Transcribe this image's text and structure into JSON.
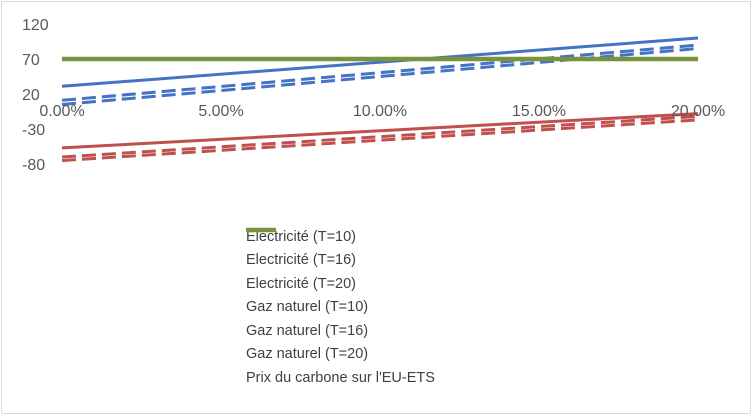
{
  "chart_data": {
    "type": "line",
    "x": [
      0,
      20
    ],
    "xlim": [
      0,
      20
    ],
    "ylim": [
      -80,
      120
    ],
    "y_ticks": [
      "120",
      "70",
      "20",
      "-30",
      "-80"
    ],
    "y_tick_values": [
      120,
      70,
      20,
      -30,
      -80
    ],
    "x_ticks": [
      "0.00%",
      "5.00%",
      "10.00%",
      "15.00%",
      "20.00%"
    ],
    "x_tick_values": [
      0,
      5,
      10,
      15,
      20
    ],
    "grid": false,
    "legend_position": "bottom",
    "series": [
      {
        "name": "Electricité (T=10)",
        "values": [
          31,
          100
        ],
        "color": "#4472C4",
        "dash": "solid"
      },
      {
        "name": "Electricité (T=16)",
        "values": [
          11,
          90
        ],
        "color": "#4472C4",
        "dash": "dashed"
      },
      {
        "name": "Electricité (T=20)",
        "values": [
          5,
          85
        ],
        "color": "#4472C4",
        "dash": "dashed"
      },
      {
        "name": "Gaz naturel (T=10)",
        "values": [
          -57,
          -8
        ],
        "color": "#C0504D",
        "dash": "solid"
      },
      {
        "name": "Gaz naturel (T=16)",
        "values": [
          -70,
          -12
        ],
        "color": "#C0504D",
        "dash": "dashed"
      },
      {
        "name": "Gaz naturel (T=20)",
        "values": [
          -75,
          -17
        ],
        "color": "#C0504D",
        "dash": "dashed"
      },
      {
        "name": "Prix du carbone sur l'EU-ETS",
        "values": [
          70,
          70
        ],
        "color": "#77933C",
        "dash": "solid"
      }
    ]
  }
}
